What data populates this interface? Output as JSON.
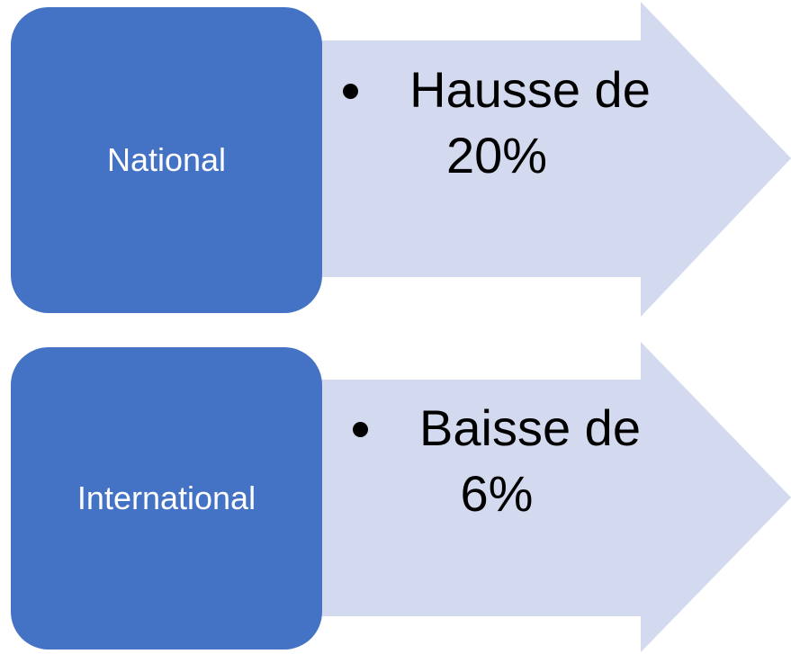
{
  "rows": [
    {
      "label": "National",
      "points": [
        "Hausse de 20%"
      ]
    },
    {
      "label": "International",
      "points": [
        "Baisse de 6%"
      ]
    }
  ]
}
